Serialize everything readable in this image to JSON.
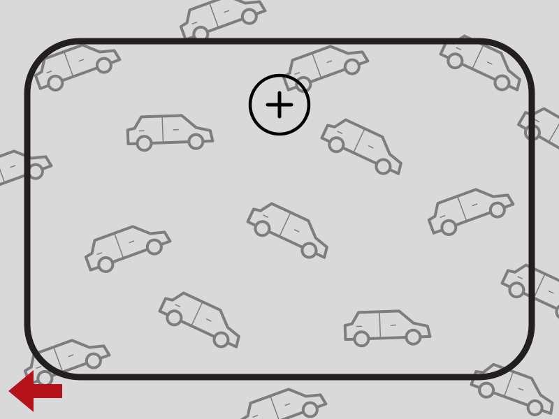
{
  "game": {
    "type": "find-the-car",
    "colors": {
      "background": "#d9d9d9",
      "car_outline": "#7d7d7d",
      "frame": "#231f20",
      "crosshair": "#000000",
      "back_arrow": "#b5121b"
    },
    "icons": {
      "back": "back-arrow-icon",
      "crosshair": "crosshair-icon",
      "car": "car-icon"
    },
    "cars": [
      {
        "id": "car-1",
        "rotation_deg": -20
      },
      {
        "id": "car-2",
        "rotation_deg": -20
      },
      {
        "id": "car-3",
        "rotation_deg": -20
      },
      {
        "id": "car-4",
        "rotation_deg": 25
      },
      {
        "id": "car-5",
        "rotation_deg": -2
      },
      {
        "id": "car-6",
        "rotation_deg": 25
      },
      {
        "id": "car-7",
        "rotation_deg": 30
      },
      {
        "id": "car-8",
        "rotation_deg": -20
      },
      {
        "id": "car-9",
        "rotation_deg": -20
      },
      {
        "id": "car-10",
        "rotation_deg": 25
      },
      {
        "id": "car-11",
        "rotation_deg": -20
      },
      {
        "id": "car-12",
        "rotation_deg": 25
      },
      {
        "id": "car-13",
        "rotation_deg": -2
      },
      {
        "id": "car-14",
        "rotation_deg": -20
      },
      {
        "id": "car-15",
        "rotation_deg": 25
      },
      {
        "id": "car-16",
        "rotation_deg": -20
      },
      {
        "id": "car-17",
        "rotation_deg": 20
      },
      {
        "id": "car-18",
        "rotation_deg": -20
      },
      {
        "id": "car-19",
        "rotation_deg": 25
      }
    ]
  }
}
